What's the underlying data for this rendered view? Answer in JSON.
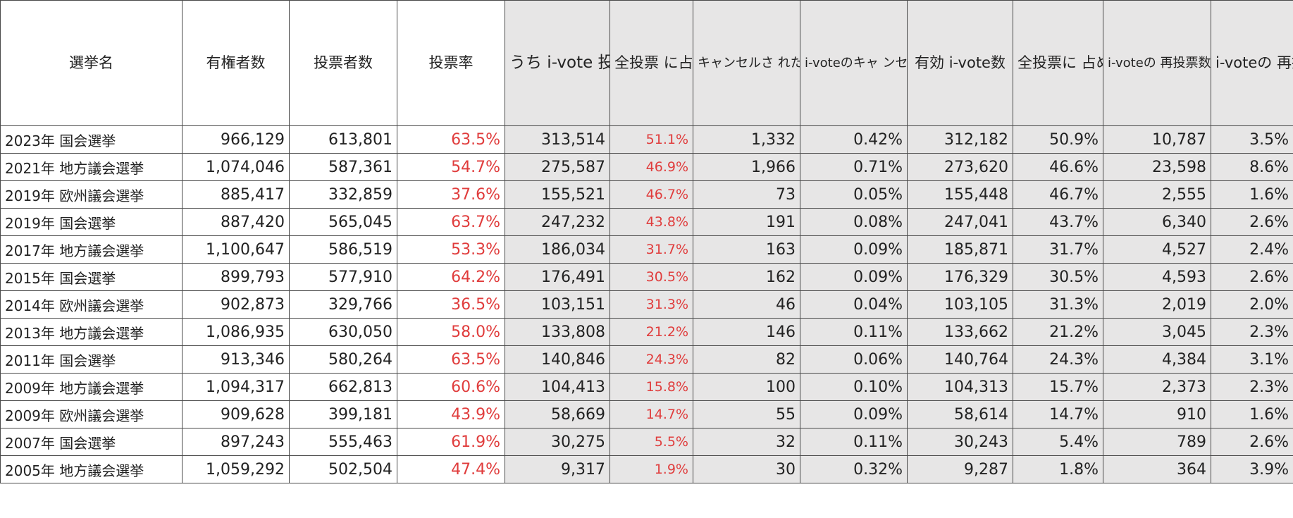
{
  "table": {
    "headers": [
      "選挙名",
      "有権者数",
      "投票者数",
      "投票率",
      "うち\ni-vote\n投票数",
      "全投票\nに占め\nる\ni-vote\n投票率",
      "キャンセルさ\nれたi-vote\n（投票日に紙\nで投票を実\n施）",
      "i-voteのキャ\nンセル率",
      "有効\ni-vote数",
      "全投票に\n占める有\n効i-vote\n投票率",
      "i-voteの\n再投票数",
      "i-voteの\n再投票\n率"
    ],
    "rows": [
      [
        "2023年 国会選挙",
        "966,129",
        "613,801",
        "63.5%",
        "313,514",
        "51.1%",
        "1,332",
        "0.42%",
        "312,182",
        "50.9%",
        "10,787",
        "3.5%"
      ],
      [
        "2021年 地方議会選挙",
        "1,074,046",
        "587,361",
        "54.7%",
        "275,587",
        "46.9%",
        "1,966",
        "0.71%",
        "273,620",
        "46.6%",
        "23,598",
        "8.6%"
      ],
      [
        "2019年 欧州議会選挙",
        "885,417",
        "332,859",
        "37.6%",
        "155,521",
        "46.7%",
        "73",
        "0.05%",
        "155,448",
        "46.7%",
        "2,555",
        "1.6%"
      ],
      [
        "2019年 国会選挙",
        "887,420",
        "565,045",
        "63.7%",
        "247,232",
        "43.8%",
        "191",
        "0.08%",
        "247,041",
        "43.7%",
        "6,340",
        "2.6%"
      ],
      [
        "2017年 地方議会選挙",
        "1,100,647",
        "586,519",
        "53.3%",
        "186,034",
        "31.7%",
        "163",
        "0.09%",
        "185,871",
        "31.7%",
        "4,527",
        "2.4%"
      ],
      [
        "2015年 国会選挙",
        "899,793",
        "577,910",
        "64.2%",
        "176,491",
        "30.5%",
        "162",
        "0.09%",
        "176,329",
        "30.5%",
        "4,593",
        "2.6%"
      ],
      [
        "2014年 欧州議会選挙",
        "902,873",
        "329,766",
        "36.5%",
        "103,151",
        "31.3%",
        "46",
        "0.04%",
        "103,105",
        "31.3%",
        "2,019",
        "2.0%"
      ],
      [
        "2013年 地方議会選挙",
        "1,086,935",
        "630,050",
        "58.0%",
        "133,808",
        "21.2%",
        "146",
        "0.11%",
        "133,662",
        "21.2%",
        "3,045",
        "2.3%"
      ],
      [
        "2011年 国会選挙",
        "913,346",
        "580,264",
        "63.5%",
        "140,846",
        "24.3%",
        "82",
        "0.06%",
        "140,764",
        "24.3%",
        "4,384",
        "3.1%"
      ],
      [
        "2009年 地方議会選挙",
        "1,094,317",
        "662,813",
        "60.6%",
        "104,413",
        "15.8%",
        "100",
        "0.10%",
        "104,313",
        "15.7%",
        "2,373",
        "2.3%"
      ],
      [
        "2009年 欧州議会選挙",
        "909,628",
        "399,181",
        "43.9%",
        "58,669",
        "14.7%",
        "55",
        "0.09%",
        "58,614",
        "14.7%",
        "910",
        "1.6%"
      ],
      [
        "2007年 国会選挙",
        "897,243",
        "555,463",
        "61.9%",
        "30,275",
        "5.5%",
        "32",
        "0.11%",
        "30,243",
        "5.4%",
        "789",
        "2.6%"
      ],
      [
        "2005年 地方議会選挙",
        "1,059,292",
        "502,504",
        "47.4%",
        "9,317",
        "1.9%",
        "30",
        "0.32%",
        "9,287",
        "1.8%",
        "364",
        "3.9%"
      ]
    ]
  },
  "colors": {
    "highlight_text": "#e03c3c",
    "shaded_background": "#e7e6e6",
    "border": "#4a4a4a"
  }
}
